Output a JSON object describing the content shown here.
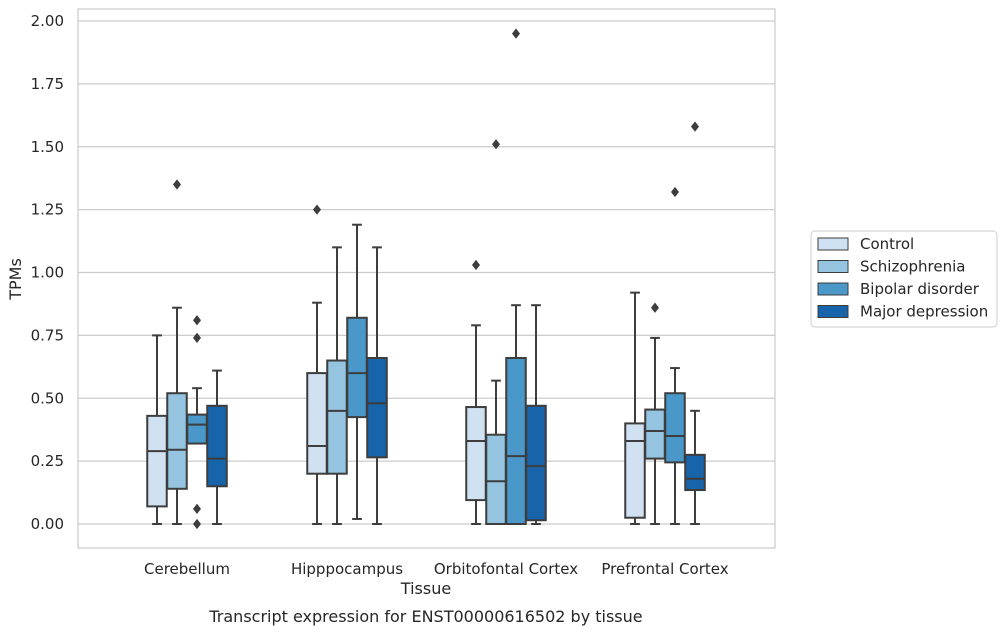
{
  "chart_data": {
    "type": "box",
    "xlabel": "Tissue",
    "ylabel": "TPMs",
    "caption": "Transcript expression for ENST00000616502 by tissue",
    "ylim": [
      -0.1,
      2.05
    ],
    "yticks": [
      "0.00",
      "0.25",
      "0.50",
      "0.75",
      "1.00",
      "1.25",
      "1.50",
      "1.75",
      "2.00"
    ],
    "grid": "horizontal",
    "legend_position": "right, outside plot",
    "categories": [
      "Cerebellum",
      "Hipppocampus",
      "Orbitofontal Cortex",
      "Prefrontal Cortex"
    ],
    "series": [
      {
        "name": "Control",
        "color": "#d0e1f2",
        "boxes": [
          {
            "min": 0.0,
            "q1": 0.07,
            "median": 0.29,
            "q3": 0.43,
            "max": 0.75,
            "outliers": []
          },
          {
            "min": 0.0,
            "q1": 0.2,
            "median": 0.31,
            "q3": 0.6,
            "max": 0.88,
            "outliers": [
              1.25
            ]
          },
          {
            "min": 0.0,
            "q1": 0.095,
            "median": 0.33,
            "q3": 0.465,
            "max": 0.79,
            "outliers": [
              1.03
            ]
          },
          {
            "min": 0.0,
            "q1": 0.025,
            "median": 0.33,
            "q3": 0.4,
            "max": 0.92,
            "outliers": []
          }
        ]
      },
      {
        "name": "Schizophrenia",
        "color": "#94c4df",
        "boxes": [
          {
            "min": 0.0,
            "q1": 0.14,
            "median": 0.295,
            "q3": 0.52,
            "max": 0.86,
            "outliers": [
              1.35
            ]
          },
          {
            "min": 0.0,
            "q1": 0.2,
            "median": 0.45,
            "q3": 0.65,
            "max": 1.1,
            "outliers": []
          },
          {
            "min": 0.0,
            "q1": 0.0,
            "median": 0.17,
            "q3": 0.355,
            "max": 0.57,
            "outliers": [
              1.51
            ]
          },
          {
            "min": 0.0,
            "q1": 0.26,
            "median": 0.37,
            "q3": 0.455,
            "max": 0.74,
            "outliers": [
              0.86
            ]
          }
        ]
      },
      {
        "name": "Bipolar disorder",
        "color": "#4a98c9",
        "boxes": [
          {
            "min": 0.32,
            "q1": 0.32,
            "median": 0.395,
            "q3": 0.435,
            "max": 0.54,
            "outliers": [
              0.81,
              0.74,
              0.06,
              0.0
            ]
          },
          {
            "min": 0.02,
            "q1": 0.425,
            "median": 0.6,
            "q3": 0.82,
            "max": 1.19,
            "outliers": []
          },
          {
            "min": 0.0,
            "q1": 0.0,
            "median": 0.27,
            "q3": 0.66,
            "max": 0.87,
            "outliers": [
              1.95
            ]
          },
          {
            "min": 0.0,
            "q1": 0.245,
            "median": 0.35,
            "q3": 0.52,
            "max": 0.62,
            "outliers": [
              1.32
            ]
          }
        ]
      },
      {
        "name": "Major depression",
        "color": "#1764ab",
        "boxes": [
          {
            "min": 0.0,
            "q1": 0.15,
            "median": 0.26,
            "q3": 0.47,
            "max": 0.61,
            "outliers": []
          },
          {
            "min": 0.0,
            "q1": 0.265,
            "median": 0.48,
            "q3": 0.66,
            "max": 1.1,
            "outliers": []
          },
          {
            "min": 0.0,
            "q1": 0.015,
            "median": 0.23,
            "q3": 0.47,
            "max": 0.87,
            "outliers": []
          },
          {
            "min": 0.0,
            "q1": 0.135,
            "median": 0.18,
            "q3": 0.275,
            "max": 0.45,
            "outliers": [
              1.58
            ]
          }
        ]
      }
    ]
  }
}
